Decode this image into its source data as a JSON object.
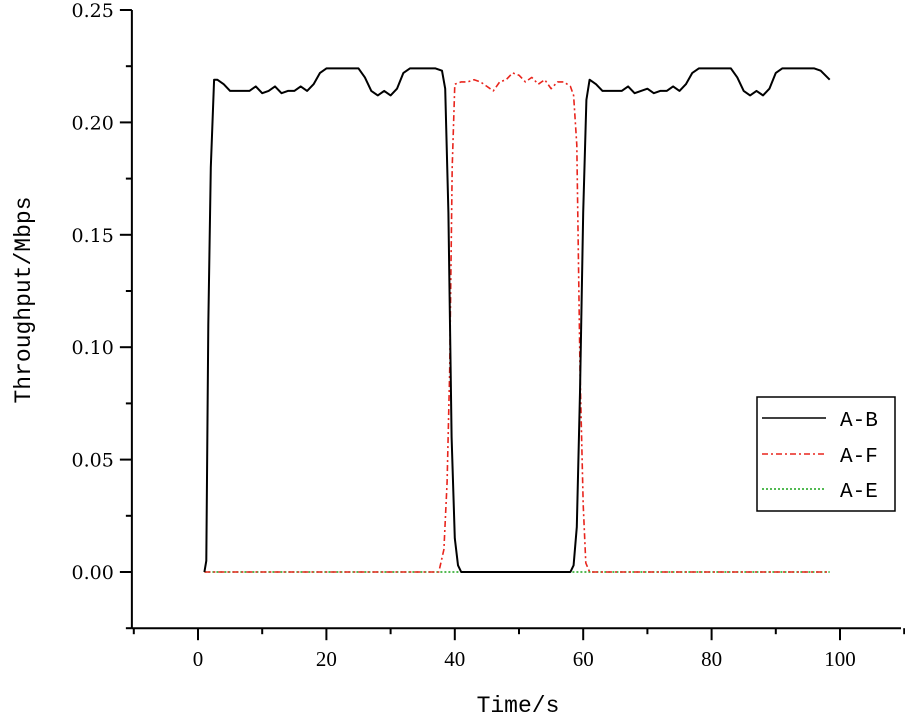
{
  "chart_data": {
    "type": "line",
    "title": "",
    "xlabel": "Time/s",
    "ylabel": "Throughput/Mbps",
    "xlim": [
      -10.3,
      109.5
    ],
    "ylim": [
      -0.025,
      0.25
    ],
    "xticks": [
      0,
      20,
      40,
      60,
      80,
      100
    ],
    "xtick_labels": [
      "0",
      "20",
      "40",
      "60",
      "80",
      "100"
    ],
    "yticks": [
      0.0,
      0.05,
      0.1,
      0.15,
      0.2,
      0.25
    ],
    "ytick_labels": [
      "0.00",
      "0.05",
      "0.10",
      "0.15",
      "0.20",
      "0.25"
    ],
    "grid": false,
    "legend_position": "right-center",
    "series": [
      {
        "name": "A-B",
        "color": "#000000",
        "style": "solid",
        "x": [
          1,
          1.3,
          1.6,
          2,
          2.5,
          3,
          4,
          5,
          6,
          7,
          8,
          9,
          10,
          11,
          12,
          13,
          14,
          15,
          16,
          17,
          18,
          19,
          20,
          21,
          22,
          23,
          24,
          25,
          26,
          27,
          28,
          29,
          30,
          31,
          32,
          33,
          34,
          35,
          36,
          37,
          38,
          38.5,
          39,
          39.5,
          40,
          40.5,
          41,
          42,
          45,
          50,
          55,
          58,
          58.5,
          59,
          59.5,
          60,
          60.5,
          61,
          62,
          63,
          64,
          65,
          66,
          67,
          68,
          69,
          70,
          71,
          72,
          73,
          74,
          75,
          76,
          77,
          78,
          79,
          80,
          81,
          82,
          83,
          84,
          85,
          86,
          87,
          88,
          89,
          90,
          91,
          92,
          93,
          94,
          95,
          96,
          97,
          98.4
        ],
        "values": [
          0,
          0.005,
          0.11,
          0.18,
          0.219,
          0.219,
          0.217,
          0.214,
          0.214,
          0.214,
          0.214,
          0.216,
          0.213,
          0.214,
          0.216,
          0.213,
          0.214,
          0.214,
          0.216,
          0.214,
          0.217,
          0.222,
          0.224,
          0.224,
          0.224,
          0.224,
          0.224,
          0.224,
          0.22,
          0.214,
          0.212,
          0.214,
          0.212,
          0.215,
          0.222,
          0.224,
          0.224,
          0.224,
          0.224,
          0.224,
          0.223,
          0.215,
          0.16,
          0.06,
          0.015,
          0.003,
          0,
          0,
          0,
          0,
          0,
          0,
          0.003,
          0.02,
          0.08,
          0.16,
          0.21,
          0.219,
          0.217,
          0.214,
          0.214,
          0.214,
          0.214,
          0.216,
          0.213,
          0.214,
          0.215,
          0.213,
          0.214,
          0.214,
          0.216,
          0.214,
          0.217,
          0.222,
          0.224,
          0.224,
          0.224,
          0.224,
          0.224,
          0.224,
          0.22,
          0.214,
          0.212,
          0.214,
          0.212,
          0.215,
          0.222,
          0.224,
          0.224,
          0.224,
          0.224,
          0.224,
          0.224,
          0.223,
          0.219
        ]
      },
      {
        "name": "A-F",
        "color": "#e8251d",
        "style": "dashdot",
        "x": [
          1,
          10,
          20,
          30,
          37.5,
          38.3,
          38.8,
          39.2,
          39.6,
          40,
          41,
          42,
          43,
          44,
          45,
          46,
          47,
          48,
          49,
          50,
          51,
          52,
          53,
          54,
          55,
          56,
          57,
          58,
          58.5,
          59,
          59.5,
          60,
          60.4,
          61,
          70,
          80,
          90,
          98.4
        ],
        "values": [
          0,
          0,
          0,
          0,
          0,
          0.01,
          0.04,
          0.09,
          0.18,
          0.217,
          0.218,
          0.218,
          0.219,
          0.218,
          0.216,
          0.214,
          0.218,
          0.219,
          0.222,
          0.221,
          0.218,
          0.22,
          0.217,
          0.219,
          0.215,
          0.218,
          0.218,
          0.216,
          0.212,
          0.19,
          0.09,
          0.03,
          0.004,
          0,
          0,
          0,
          0,
          0
        ]
      },
      {
        "name": "A-E",
        "color": "#1aa31a",
        "style": "dotted",
        "x": [
          1,
          98.4
        ],
        "values": [
          0,
          0
        ]
      }
    ]
  },
  "legend": {
    "entries": [
      "A-B",
      "A-F",
      "A-E"
    ]
  }
}
